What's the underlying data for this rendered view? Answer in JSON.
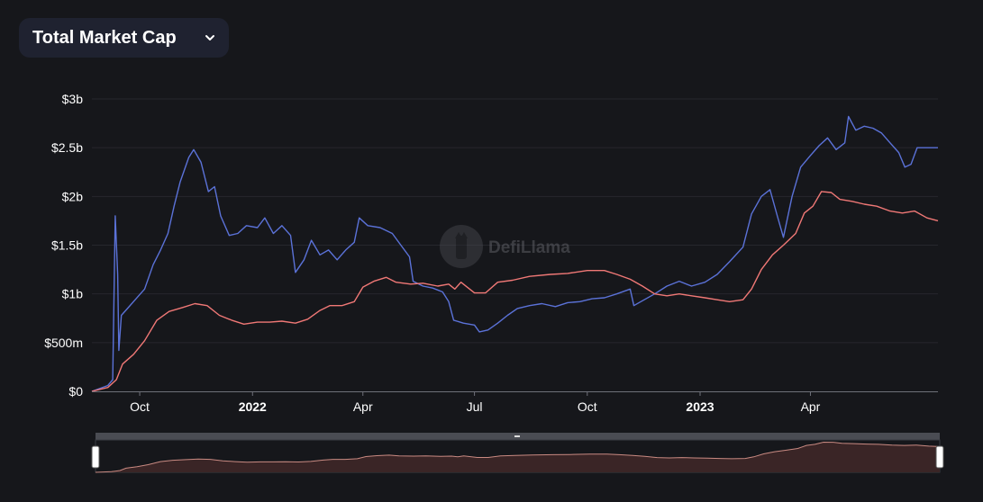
{
  "selector": {
    "label": "Total Market Cap",
    "icon": "chevron-down-icon"
  },
  "watermark": {
    "text": "DefiLlama"
  },
  "colors": {
    "background": "#16171b",
    "grid": "#26272d",
    "axis_text": "#ffffff",
    "series_blue": "#5b72d8",
    "series_red": "#f07876",
    "slider_fill": "#3a2526",
    "slider_line": "#c98a82",
    "slider_bar": "#4a4c53"
  },
  "chart_data": {
    "type": "line",
    "title": "",
    "xlabel": "",
    "ylabel": "",
    "ylim": [
      0,
      3000000000
    ],
    "grid": true,
    "legend": "none",
    "y_ticks": [
      {
        "value": 0,
        "label": "$0"
      },
      {
        "value": 500000000,
        "label": "$500m"
      },
      {
        "value": 1000000000,
        "label": "$1b"
      },
      {
        "value": 1500000000,
        "label": "$1.5b"
      },
      {
        "value": 2000000000,
        "label": "$2b"
      },
      {
        "value": 2500000000,
        "label": "$2.5b"
      },
      {
        "value": 3000000000,
        "label": "$3b"
      }
    ],
    "xlim": [
      "2021-08-23",
      "2023-07-14"
    ],
    "x_ticks": [
      {
        "date": "2021-10-01",
        "label": "Oct",
        "bold": false
      },
      {
        "date": "2022-01-01",
        "label": "2022",
        "bold": true
      },
      {
        "date": "2022-04-01",
        "label": "Apr",
        "bold": false
      },
      {
        "date": "2022-07-01",
        "label": "Jul",
        "bold": false
      },
      {
        "date": "2022-10-01",
        "label": "Oct",
        "bold": false
      },
      {
        "date": "2023-01-01",
        "label": "2023",
        "bold": true
      },
      {
        "date": "2023-04-01",
        "label": "Apr",
        "bold": false
      }
    ],
    "series": [
      {
        "color": "#5b72d8",
        "points": [
          [
            "2021-08-23",
            0
          ],
          [
            "2021-09-05",
            60000000
          ],
          [
            "2021-09-09",
            120000000
          ],
          [
            "2021-09-11",
            1800000000
          ],
          [
            "2021-09-13",
            1200000000
          ],
          [
            "2021-09-14",
            420000000
          ],
          [
            "2021-09-16",
            780000000
          ],
          [
            "2021-09-21",
            850000000
          ],
          [
            "2021-09-28",
            950000000
          ],
          [
            "2021-10-05",
            1050000000
          ],
          [
            "2021-10-12",
            1300000000
          ],
          [
            "2021-10-18",
            1450000000
          ],
          [
            "2021-10-24",
            1620000000
          ],
          [
            "2021-10-29",
            1900000000
          ],
          [
            "2021-11-03",
            2150000000
          ],
          [
            "2021-11-10",
            2400000000
          ],
          [
            "2021-11-14",
            2480000000
          ],
          [
            "2021-11-20",
            2350000000
          ],
          [
            "2021-11-26",
            2050000000
          ],
          [
            "2021-12-01",
            2100000000
          ],
          [
            "2021-12-06",
            1800000000
          ],
          [
            "2021-12-13",
            1600000000
          ],
          [
            "2021-12-20",
            1620000000
          ],
          [
            "2021-12-27",
            1700000000
          ],
          [
            "2022-01-05",
            1680000000
          ],
          [
            "2022-01-11",
            1780000000
          ],
          [
            "2022-01-18",
            1620000000
          ],
          [
            "2022-01-25",
            1700000000
          ],
          [
            "2022-02-01",
            1600000000
          ],
          [
            "2022-02-05",
            1220000000
          ],
          [
            "2022-02-12",
            1350000000
          ],
          [
            "2022-02-18",
            1550000000
          ],
          [
            "2022-02-25",
            1400000000
          ],
          [
            "2022-03-04",
            1450000000
          ],
          [
            "2022-03-11",
            1350000000
          ],
          [
            "2022-03-18",
            1450000000
          ],
          [
            "2022-03-25",
            1530000000
          ],
          [
            "2022-03-29",
            1780000000
          ],
          [
            "2022-04-05",
            1700000000
          ],
          [
            "2022-04-15",
            1680000000
          ],
          [
            "2022-04-25",
            1620000000
          ],
          [
            "2022-05-02",
            1500000000
          ],
          [
            "2022-05-09",
            1380000000
          ],
          [
            "2022-05-12",
            1130000000
          ],
          [
            "2022-05-20",
            1080000000
          ],
          [
            "2022-05-28",
            1060000000
          ],
          [
            "2022-06-05",
            1020000000
          ],
          [
            "2022-06-10",
            920000000
          ],
          [
            "2022-06-14",
            730000000
          ],
          [
            "2022-06-22",
            700000000
          ],
          [
            "2022-07-01",
            680000000
          ],
          [
            "2022-07-05",
            610000000
          ],
          [
            "2022-07-12",
            630000000
          ],
          [
            "2022-07-20",
            700000000
          ],
          [
            "2022-07-28",
            780000000
          ],
          [
            "2022-08-05",
            850000000
          ],
          [
            "2022-08-15",
            880000000
          ],
          [
            "2022-08-25",
            900000000
          ],
          [
            "2022-09-05",
            870000000
          ],
          [
            "2022-09-15",
            910000000
          ],
          [
            "2022-09-25",
            920000000
          ],
          [
            "2022-10-05",
            950000000
          ],
          [
            "2022-10-15",
            960000000
          ],
          [
            "2022-10-25",
            1000000000
          ],
          [
            "2022-11-05",
            1050000000
          ],
          [
            "2022-11-08",
            880000000
          ],
          [
            "2022-11-15",
            930000000
          ],
          [
            "2022-11-25",
            1000000000
          ],
          [
            "2022-12-05",
            1080000000
          ],
          [
            "2022-12-15",
            1130000000
          ],
          [
            "2022-12-25",
            1080000000
          ],
          [
            "2023-01-05",
            1120000000
          ],
          [
            "2023-01-15",
            1200000000
          ],
          [
            "2023-01-25",
            1330000000
          ],
          [
            "2023-02-05",
            1480000000
          ],
          [
            "2023-02-12",
            1820000000
          ],
          [
            "2023-02-20",
            2000000000
          ],
          [
            "2023-02-27",
            2070000000
          ],
          [
            "2023-03-05",
            1800000000
          ],
          [
            "2023-03-10",
            1580000000
          ],
          [
            "2023-03-17",
            2000000000
          ],
          [
            "2023-03-24",
            2300000000
          ],
          [
            "2023-04-01",
            2420000000
          ],
          [
            "2023-04-08",
            2520000000
          ],
          [
            "2023-04-15",
            2600000000
          ],
          [
            "2023-04-22",
            2480000000
          ],
          [
            "2023-04-29",
            2550000000
          ],
          [
            "2023-05-02",
            2820000000
          ],
          [
            "2023-05-08",
            2680000000
          ],
          [
            "2023-05-15",
            2720000000
          ],
          [
            "2023-05-22",
            2700000000
          ],
          [
            "2023-05-29",
            2650000000
          ],
          [
            "2023-06-05",
            2550000000
          ],
          [
            "2023-06-12",
            2450000000
          ],
          [
            "2023-06-17",
            2300000000
          ],
          [
            "2023-06-22",
            2330000000
          ],
          [
            "2023-06-27",
            2500000000
          ],
          [
            "2023-07-04",
            2500000000
          ],
          [
            "2023-07-14",
            2500000000
          ]
        ]
      },
      {
        "color": "#f07876",
        "points": [
          [
            "2021-08-23",
            0
          ],
          [
            "2021-09-05",
            40000000
          ],
          [
            "2021-09-12",
            120000000
          ],
          [
            "2021-09-17",
            280000000
          ],
          [
            "2021-09-26",
            380000000
          ],
          [
            "2021-10-05",
            520000000
          ],
          [
            "2021-10-15",
            730000000
          ],
          [
            "2021-10-25",
            820000000
          ],
          [
            "2021-11-05",
            860000000
          ],
          [
            "2021-11-15",
            900000000
          ],
          [
            "2021-11-25",
            880000000
          ],
          [
            "2021-12-05",
            780000000
          ],
          [
            "2021-12-15",
            730000000
          ],
          [
            "2021-12-25",
            690000000
          ],
          [
            "2022-01-05",
            710000000
          ],
          [
            "2022-01-15",
            710000000
          ],
          [
            "2022-01-25",
            720000000
          ],
          [
            "2022-02-05",
            700000000
          ],
          [
            "2022-02-15",
            740000000
          ],
          [
            "2022-02-25",
            830000000
          ],
          [
            "2022-03-05",
            880000000
          ],
          [
            "2022-03-15",
            880000000
          ],
          [
            "2022-03-25",
            920000000
          ],
          [
            "2022-04-01",
            1070000000
          ],
          [
            "2022-04-10",
            1130000000
          ],
          [
            "2022-04-20",
            1170000000
          ],
          [
            "2022-04-28",
            1120000000
          ],
          [
            "2022-05-10",
            1100000000
          ],
          [
            "2022-05-20",
            1110000000
          ],
          [
            "2022-06-01",
            1080000000
          ],
          [
            "2022-06-10",
            1100000000
          ],
          [
            "2022-06-15",
            1050000000
          ],
          [
            "2022-06-20",
            1120000000
          ],
          [
            "2022-07-01",
            1010000000
          ],
          [
            "2022-07-10",
            1010000000
          ],
          [
            "2022-07-20",
            1120000000
          ],
          [
            "2022-08-01",
            1140000000
          ],
          [
            "2022-08-15",
            1180000000
          ],
          [
            "2022-09-01",
            1200000000
          ],
          [
            "2022-09-15",
            1210000000
          ],
          [
            "2022-10-01",
            1240000000
          ],
          [
            "2022-10-15",
            1240000000
          ],
          [
            "2022-10-25",
            1200000000
          ],
          [
            "2022-11-05",
            1150000000
          ],
          [
            "2022-11-15",
            1080000000
          ],
          [
            "2022-11-25",
            1000000000
          ],
          [
            "2022-12-05",
            980000000
          ],
          [
            "2022-12-15",
            1000000000
          ],
          [
            "2022-12-25",
            980000000
          ],
          [
            "2023-01-05",
            960000000
          ],
          [
            "2023-01-15",
            940000000
          ],
          [
            "2023-01-25",
            920000000
          ],
          [
            "2023-02-05",
            940000000
          ],
          [
            "2023-02-12",
            1050000000
          ],
          [
            "2023-02-20",
            1250000000
          ],
          [
            "2023-03-01",
            1400000000
          ],
          [
            "2023-03-10",
            1500000000
          ],
          [
            "2023-03-20",
            1620000000
          ],
          [
            "2023-03-27",
            1830000000
          ],
          [
            "2023-04-03",
            1900000000
          ],
          [
            "2023-04-10",
            2050000000
          ],
          [
            "2023-04-18",
            2040000000
          ],
          [
            "2023-04-25",
            1970000000
          ],
          [
            "2023-05-05",
            1950000000
          ],
          [
            "2023-05-15",
            1920000000
          ],
          [
            "2023-05-25",
            1900000000
          ],
          [
            "2023-06-05",
            1850000000
          ],
          [
            "2023-06-15",
            1830000000
          ],
          [
            "2023-06-25",
            1850000000
          ],
          [
            "2023-07-05",
            1780000000
          ],
          [
            "2023-07-14",
            1750000000
          ]
        ]
      }
    ]
  }
}
